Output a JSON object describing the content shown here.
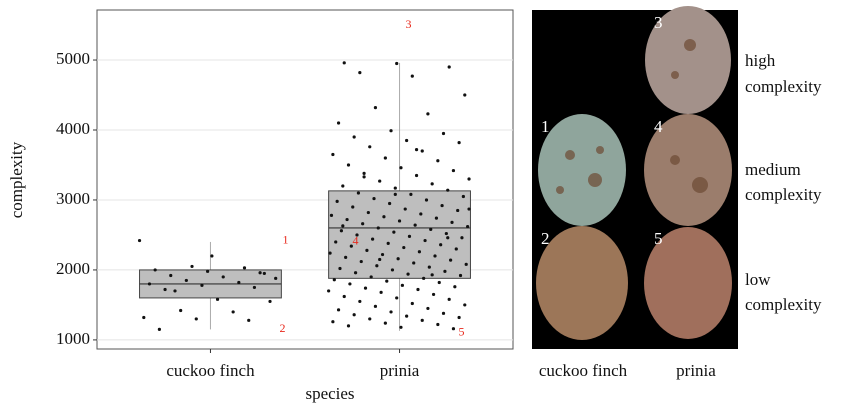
{
  "chart_data": {
    "type": "boxplot",
    "x_label": "species",
    "y_label": "complexity",
    "categories": [
      "cuckoo finch",
      "prinia"
    ],
    "ylim": [
      870,
      5715
    ],
    "yticks": [
      1000,
      2000,
      3000,
      4000,
      5000
    ],
    "grid": true,
    "box_color": "#bebebe",
    "point_color": "#111111",
    "annotation_color": "#e8291c",
    "boxes": [
      {
        "whisker_low": 1150,
        "q1": 1600,
        "median": 1800,
        "q3": 2000,
        "whisker_high": 2400
      },
      {
        "whisker_low": 1130,
        "q1": 1880,
        "median": 2600,
        "q3": 3130,
        "whisker_high": 4960
      }
    ],
    "points": [
      [
        2420,
        2050,
        2030,
        2000,
        1980,
        1960,
        1920,
        1900,
        1880,
        1850,
        1820,
        1800,
        1780,
        1750,
        1720,
        1580,
        1550,
        1420,
        1400,
        1320,
        1300,
        1280,
        1150,
        2200,
        1950,
        1700
      ],
      [
        4960,
        4950,
        4900,
        4820,
        4770,
        4500,
        4320,
        4230,
        4100,
        3990,
        3950,
        3900,
        3850,
        3820,
        3760,
        3700,
        3650,
        3600,
        3560,
        3500,
        3460,
        3420,
        3380,
        3350,
        3300,
        3270,
        3230,
        3200,
        3170,
        3140,
        3100,
        3080,
        3050,
        3020,
        3000,
        2980,
        2950,
        2920,
        2900,
        2870,
        2850,
        2820,
        2800,
        2780,
        2760,
        2740,
        2720,
        2700,
        2680,
        2660,
        2640,
        2620,
        2600,
        2580,
        2560,
        2540,
        2520,
        2500,
        2480,
        2460,
        2440,
        2420,
        2400,
        2380,
        2360,
        2340,
        2320,
        2300,
        2280,
        2260,
        2240,
        2220,
        2200,
        2180,
        2160,
        2140,
        2120,
        2100,
        2080,
        2060,
        2040,
        2020,
        2000,
        1980,
        1960,
        1940,
        1920,
        1900,
        1880,
        1860,
        1840,
        1820,
        1800,
        1780,
        1760,
        1740,
        1720,
        1700,
        1680,
        1650,
        1620,
        1600,
        1580,
        1550,
        1520,
        1500,
        1480,
        1450,
        1430,
        1400,
        1380,
        1360,
        1340,
        1320,
        1300,
        1280,
        1260,
        1240,
        1220,
        1200,
        1180,
        1160,
        3330,
        3720,
        2870,
        2150,
        1930,
        2630,
        3080,
        2460
      ]
    ],
    "annotations": [
      {
        "label": "1",
        "category": 0,
        "value": 2420
      },
      {
        "label": "2",
        "category": 0,
        "value": 1150
      },
      {
        "label": "3",
        "category": 1,
        "value": 5500
      },
      {
        "label": "4",
        "category": 1,
        "value": 2400
      },
      {
        "label": "5",
        "category": 1,
        "value": 1100
      }
    ]
  },
  "image_panel": {
    "egg_labels": [
      "1",
      "2",
      "3",
      "4",
      "5"
    ],
    "column_labels": [
      "cuckoo finch",
      "prinia"
    ],
    "row_labels": [
      [
        "high",
        "complexity"
      ],
      [
        "medium",
        "complexity"
      ],
      [
        "low",
        "complexity"
      ]
    ]
  }
}
